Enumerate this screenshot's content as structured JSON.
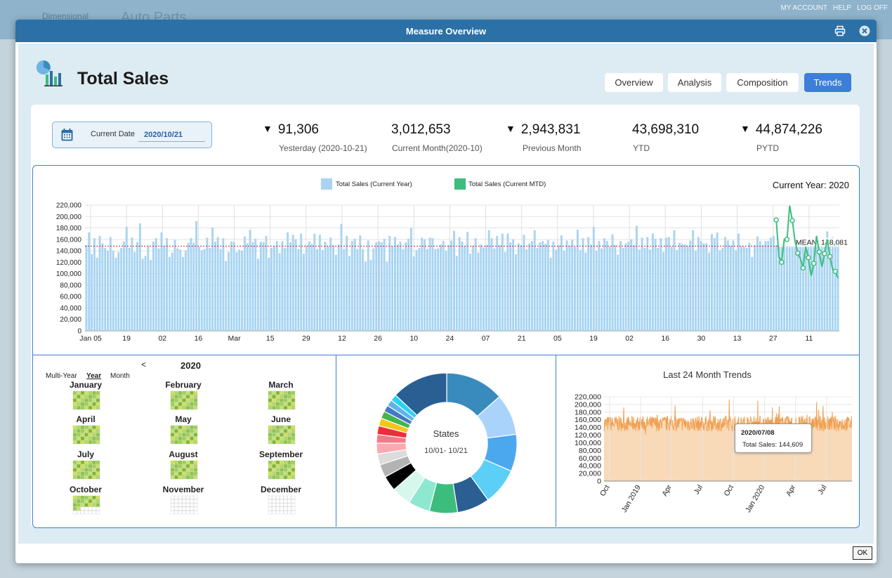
{
  "background_app": {
    "logo_text": "Dimensional",
    "app_title": "Auto Parts",
    "links": [
      "MY ACCOUNT",
      "HELP",
      "LOG OFF"
    ]
  },
  "modal": {
    "title": "Measure Overview",
    "print_icon": "printer-icon",
    "close_icon": "close-circle-icon",
    "ok_label": "OK"
  },
  "header": {
    "title": "Total Sales",
    "icon": "pie-bar-chart-icon",
    "tabs": [
      {
        "label": "Overview",
        "active": false
      },
      {
        "label": "Analysis",
        "active": false
      },
      {
        "label": "Composition",
        "active": false
      },
      {
        "label": "Trends",
        "active": true
      }
    ]
  },
  "date_picker": {
    "label": "Current Date",
    "value": "2020/10/21",
    "icon": "calendar-icon"
  },
  "kpis": [
    {
      "value": "91,306",
      "label": "Yesterday (2020-10-21)",
      "trend": "down"
    },
    {
      "value": "3,012,653",
      "label": "Current Month(2020-10)",
      "trend": "none"
    },
    {
      "value": "2,943,831",
      "label": "Previous Month",
      "trend": "down"
    },
    {
      "value": "43,698,310",
      "label": "YTD",
      "trend": "none"
    },
    {
      "value": "44,874,226",
      "label": "PYTD",
      "trend": "down"
    }
  ],
  "chart_data": [
    {
      "type": "bar",
      "title": "",
      "corner_label": "Current Year: 2020",
      "legend": [
        "Total Sales (Current Year)",
        "Total Sales (Current MTD)"
      ],
      "legend_placement": "top-center",
      "colors": {
        "bars": "#a8d4f2",
        "mtd_line": "#3dbd7d",
        "mean_line": "#c0392b"
      },
      "ylim": [
        0,
        220000
      ],
      "y_ticks": [
        "0",
        "20,000",
        "40,000",
        "60,000",
        "80,000",
        "100,000",
        "120,000",
        "140,000",
        "160,000",
        "180,000",
        "200,000",
        "220,000"
      ],
      "x_ticks": [
        "Jan 05",
        "19",
        "02",
        "16",
        "Mar",
        "15",
        "29",
        "12",
        "26",
        "10",
        "24",
        "07",
        "21",
        "05",
        "19",
        "02",
        "16",
        "30",
        "13",
        "27",
        "11"
      ],
      "mean_label": "MEAN: 148,081",
      "mean": 148081,
      "grid": true,
      "series": [
        {
          "name": "Total Sales (Current Year)",
          "type": "bar",
          "values": [
            150000,
            172000,
            134000,
            162000,
            128000,
            166000,
            153000,
            145000,
            140000,
            164000,
            140000,
            128000,
            138000,
            145000,
            156000,
            182000,
            145000,
            163000,
            138000,
            155000,
            188000,
            126000,
            131000,
            149000,
            124000,
            156000,
            162000,
            144000,
            172000,
            149000,
            162000,
            129000,
            137000,
            159000,
            144000,
            142000,
            129000,
            141000,
            154000,
            162000,
            154000,
            192000,
            147000,
            141000,
            143000,
            163000,
            145000,
            181000,
            156000,
            164000,
            143000,
            162000,
            122000,
            138000,
            156000,
            156000,
            138000,
            142000,
            140000,
            165000,
            153000,
            177000,
            155000,
            161000,
            126000,
            156000,
            155000,
            166000,
            128000,
            145000,
            148000,
            157000,
            136000,
            157000,
            145000,
            172000,
            155000,
            168000,
            160000,
            143000,
            170000,
            135000,
            149000,
            156000,
            152000,
            170000,
            143000,
            168000,
            141000,
            156000,
            148000,
            163000,
            150000,
            133000,
            151000,
            187000,
            143000,
            166000,
            131000,
            157000,
            161000,
            143000,
            167000,
            143000,
            121000,
            158000,
            124000,
            144000,
            155000,
            157000,
            155000,
            161000,
            121000,
            166000,
            148000,
            164000,
            151000,
            156000,
            143000,
            155000,
            161000,
            180000,
            130000,
            141000,
            145000,
            163000,
            160000,
            143000,
            163000,
            162000,
            143000,
            144000,
            151000,
            157000,
            140000,
            150000,
            158000,
            175000,
            131000,
            164000,
            156000,
            149000,
            173000,
            135000,
            149000,
            162000,
            137000,
            151000,
            146000,
            150000,
            176000,
            162000,
            144000,
            166000,
            150000,
            170000,
            138000,
            170000,
            155000,
            160000,
            134000,
            153000,
            150000,
            168000,
            142000,
            153000,
            157000,
            176000,
            145000,
            155000,
            157000,
            152000,
            159000,
            128000,
            156000,
            142000,
            150000,
            167000,
            140000,
            158000,
            149000,
            159000,
            147000,
            177000,
            141000,
            162000,
            137000,
            164000,
            151000,
            182000,
            140000,
            157000,
            144000,
            162000,
            157000,
            147000,
            169000,
            150000,
            133000,
            157000,
            145000,
            153000,
            156000,
            160000,
            150000,
            184000,
            142000,
            163000,
            145000,
            164000,
            142000,
            170000,
            161000,
            145000,
            162000,
            138000,
            163000,
            164000,
            147000,
            176000,
            141000,
            154000,
            152000,
            151000,
            149000,
            158000,
            176000,
            140000,
            164000,
            157000,
            153000,
            153000,
            137000,
            169000,
            162000,
            172000,
            141000,
            145000,
            164000,
            158000,
            149000,
            158000,
            141000,
            170000,
            148000,
            147000,
            145000,
            154000,
            129000,
            150000,
            165000,
            157000,
            150000,
            157000,
            157000,
            163000,
            166000,
            150000,
            151000,
            158000,
            156000,
            153000,
            152000,
            148000,
            147000,
            158000,
            157000,
            163000,
            156000,
            149000,
            152000,
            157000,
            157000,
            155000,
            154000,
            147000,
            174000,
            162000,
            164000,
            157000,
            150000
          ]
        },
        {
          "name": "Total Sales (Current MTD)",
          "type": "line",
          "values": [
            194000,
            130000,
            120000,
            160000,
            160000,
            219000,
            193000,
            157000,
            136000,
            126000,
            110000,
            147000,
            128000,
            96000,
            118000,
            166000,
            138000,
            112000,
            135000,
            160000,
            130000,
            108000,
            104000,
            92000
          ]
        }
      ]
    },
    {
      "type": "pie",
      "title": "",
      "center_title": "States",
      "center_subtitle": "10/01- 10/21",
      "donut": true,
      "slices": [
        {
          "value": 13.5,
          "color": "#3a8bbd"
        },
        {
          "value": 9.5,
          "color": "#a9d3fb"
        },
        {
          "value": 8.5,
          "color": "#4ca8ee"
        },
        {
          "value": 8.5,
          "color": "#5ccff7"
        },
        {
          "value": 7.5,
          "color": "#2b5f93"
        },
        {
          "value": 6.5,
          "color": "#3dbd7d"
        },
        {
          "value": 5.0,
          "color": "#8ee8cf"
        },
        {
          "value": 4.5,
          "color": "#d6f8ec"
        },
        {
          "value": 3.5,
          "color": "#000000"
        },
        {
          "value": 3.0,
          "color": "#b3b3b3"
        },
        {
          "value": 2.5,
          "color": "#dcdcdc"
        },
        {
          "value": 2.5,
          "color": "#fba9b0"
        },
        {
          "value": 2.0,
          "color": "#f17b86"
        },
        {
          "value": 2.0,
          "color": "#ee2d3b"
        },
        {
          "value": 1.8,
          "color": "#f3c61e"
        },
        {
          "value": 1.7,
          "color": "#46b44d"
        },
        {
          "value": 1.5,
          "color": "#4479c4"
        },
        {
          "value": 1.5,
          "color": "#5eb3ea"
        },
        {
          "value": 1.5,
          "color": "#27d3f2"
        },
        {
          "value": 13.0,
          "color": "#2a5f93"
        }
      ]
    },
    {
      "type": "area",
      "title": "Last 24 Month Trends",
      "ylim": [
        0,
        220000
      ],
      "y_ticks": [
        "0",
        "20,000",
        "40,000",
        "60,000",
        "80,000",
        "100,000",
        "120,000",
        "140,000",
        "160,000",
        "180,000",
        "200,000",
        "220,000"
      ],
      "x_ticks": [
        "Oct",
        "Jan 2019",
        "Apr",
        "Jul",
        "Oct",
        "Jan 2020",
        "Apr",
        "Jul"
      ],
      "colors": {
        "line": "#f0a050",
        "fill": "#f8d9b8"
      },
      "grid": true,
      "tooltip": {
        "date": "2020/07/08",
        "label": "Total Sales:",
        "value": "144,609"
      },
      "series": [
        {
          "name": "Total Sales",
          "x_range": [
            "2018-10",
            "2020-10"
          ],
          "baseline": 150000,
          "min": 90000,
          "max": 219000
        }
      ]
    }
  ],
  "calendar": {
    "nav_prev": "<",
    "year": "2020",
    "views": [
      "Multi-Year",
      "Year",
      "Month"
    ],
    "active_view": "Year",
    "months": [
      {
        "name": "January",
        "filled": 1.0
      },
      {
        "name": "February",
        "filled": 1.0
      },
      {
        "name": "March",
        "filled": 1.0
      },
      {
        "name": "April",
        "filled": 1.0
      },
      {
        "name": "May",
        "filled": 1.0
      },
      {
        "name": "June",
        "filled": 1.0
      },
      {
        "name": "July",
        "filled": 1.0
      },
      {
        "name": "August",
        "filled": 1.0
      },
      {
        "name": "September",
        "filled": 1.0
      },
      {
        "name": "October",
        "filled": 0.65
      },
      {
        "name": "November",
        "filled": 0
      },
      {
        "name": "December",
        "filled": 0
      }
    ]
  }
}
